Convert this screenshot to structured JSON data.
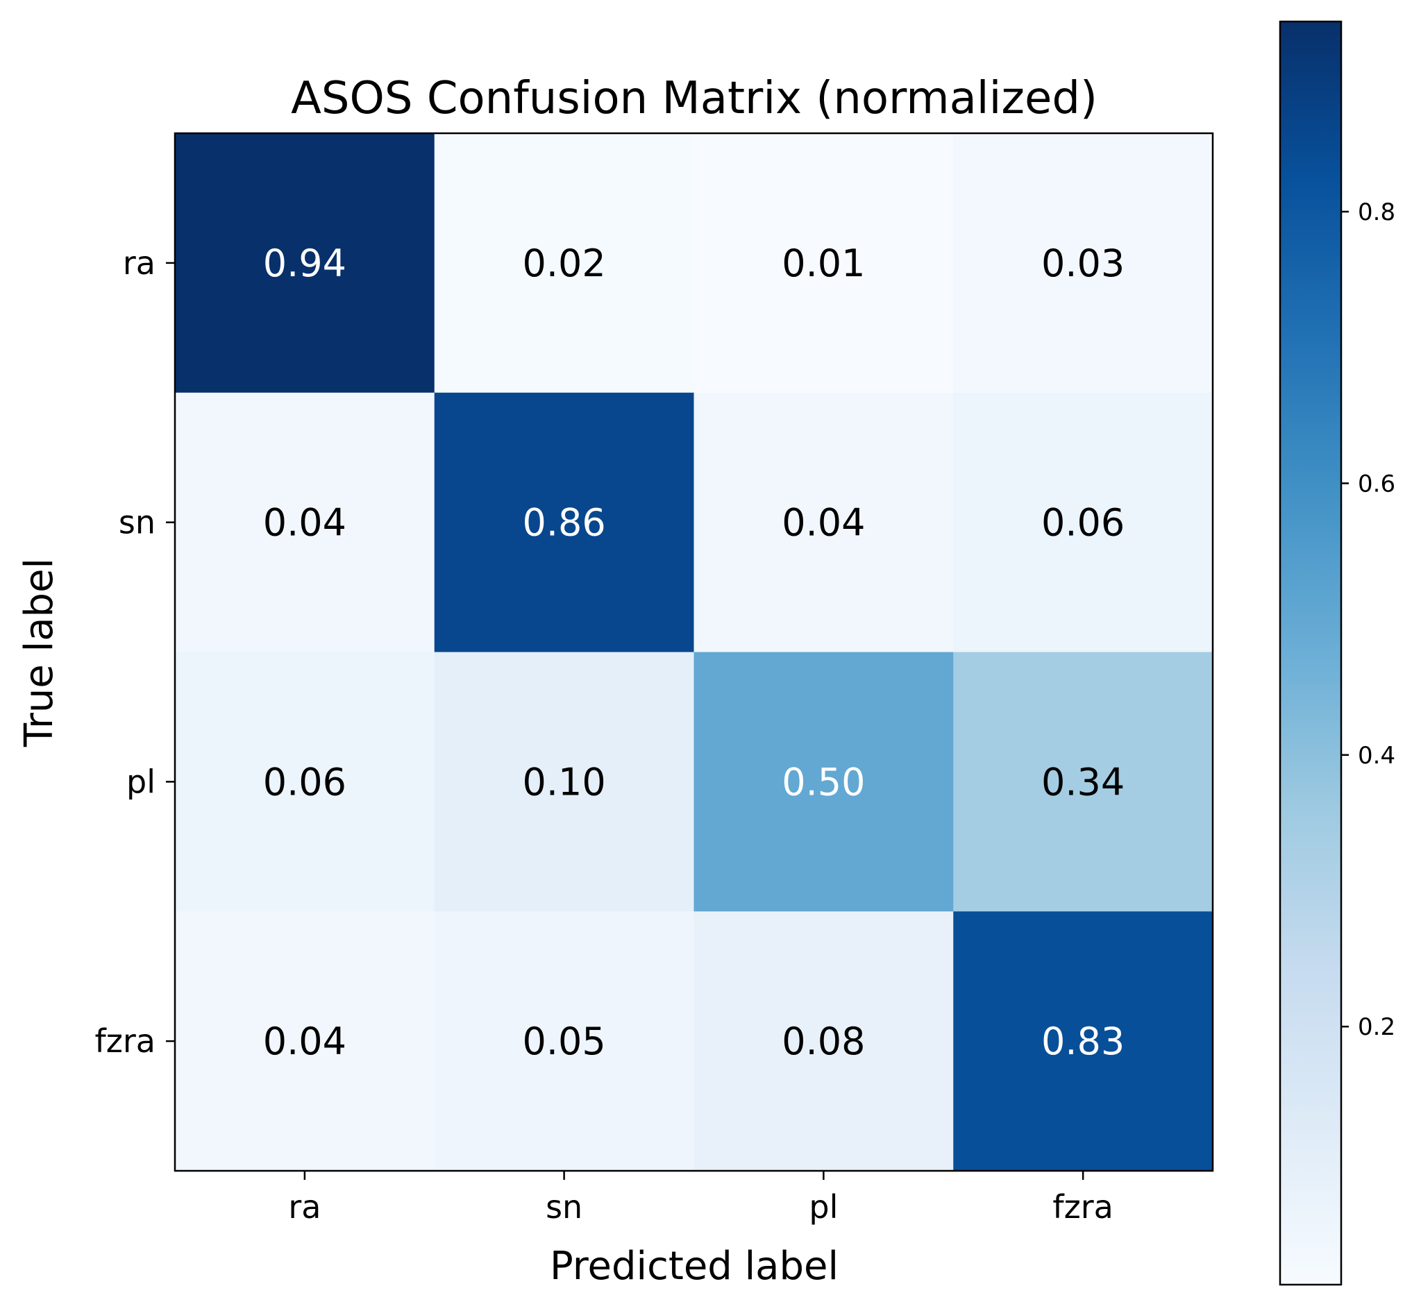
{
  "chart_data": {
    "type": "heatmap",
    "title": "ASOS Confusion Matrix (normalized)",
    "xlabel": "Predicted label",
    "ylabel": "True label",
    "x_categories": [
      "ra",
      "sn",
      "pl",
      "fzra"
    ],
    "y_categories": [
      "ra",
      "sn",
      "pl",
      "fzra"
    ],
    "values": [
      [
        0.94,
        0.02,
        0.01,
        0.03
      ],
      [
        0.04,
        0.86,
        0.04,
        0.06
      ],
      [
        0.06,
        0.1,
        0.5,
        0.34
      ],
      [
        0.04,
        0.05,
        0.08,
        0.83
      ]
    ],
    "value_labels": [
      [
        "0.94",
        "0.02",
        "0.01",
        "0.03"
      ],
      [
        "0.04",
        "0.86",
        "0.04",
        "0.06"
      ],
      [
        "0.06",
        "0.10",
        "0.50",
        "0.34"
      ],
      [
        "0.04",
        "0.05",
        "0.08",
        "0.83"
      ]
    ],
    "colormap": "Blues",
    "colorbar": {
      "range": [
        0.01,
        0.94
      ],
      "ticks": [
        0.2,
        0.4,
        0.6,
        0.8
      ],
      "tick_labels": [
        "0.2",
        "0.4",
        "0.6",
        "0.8"
      ]
    },
    "text_color_dark": "#000000",
    "text_color_light": "#ffffff",
    "grid": false
  }
}
